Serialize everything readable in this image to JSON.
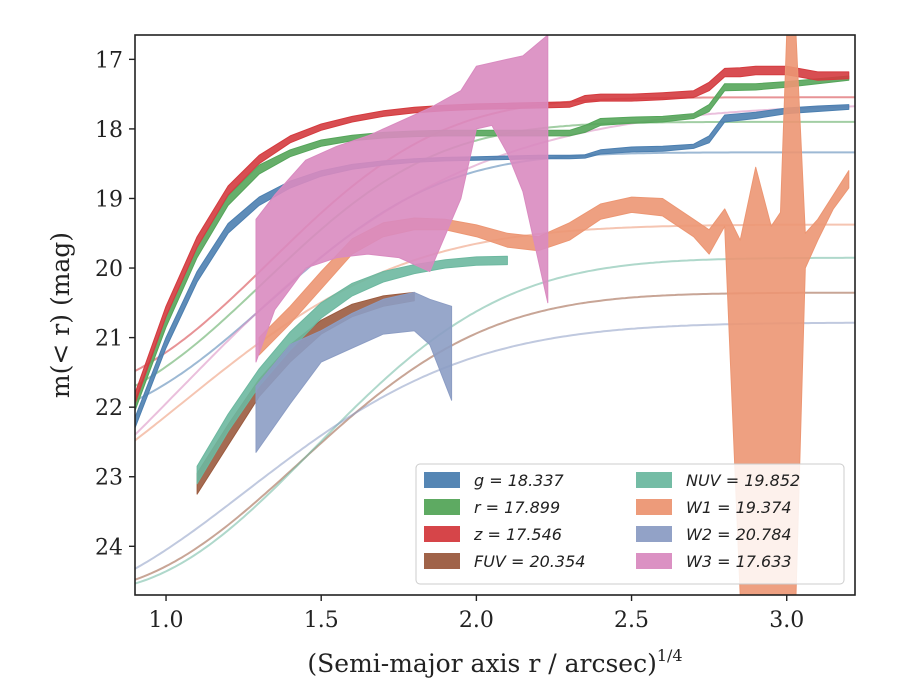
{
  "chart_data": {
    "type": "line",
    "xlabel": "(Semi-major axis r / arcsec)",
    "xlabel_sup": "1/4",
    "ylabel": "m(< r) (mag)",
    "xlim": [
      0.9,
      3.22
    ],
    "ylim": [
      24.7,
      16.65
    ],
    "y_inverted": true,
    "x_ticks": [
      1.0,
      1.5,
      2.0,
      2.5,
      3.0
    ],
    "x_tick_labels": [
      "1.0",
      "1.5",
      "2.0",
      "2.5",
      "3.0"
    ],
    "y_ticks": [
      17,
      18,
      19,
      20,
      21,
      22,
      23,
      24
    ],
    "y_tick_labels": [
      "17",
      "18",
      "19",
      "20",
      "21",
      "22",
      "23",
      "24"
    ],
    "grid": false,
    "legend_position": "lower-right",
    "series": [
      {
        "name": "g",
        "legend": "g = 18.337",
        "color": "#4c7fb0",
        "model_asymptote": 18.337,
        "model_scale": 3.9,
        "model_offset": 0.52,
        "model_power": 2.5,
        "x": [
          0.9,
          1.0,
          1.1,
          1.2,
          1.3,
          1.4,
          1.5,
          1.6,
          1.7,
          1.8,
          1.9,
          2.0,
          2.1,
          2.2,
          2.3,
          2.35,
          2.4,
          2.5,
          2.6,
          2.7,
          2.75,
          2.8,
          2.9,
          3.0,
          3.1,
          3.2
        ],
        "y_lower": [
          22.3,
          21.15,
          20.2,
          19.5,
          19.1,
          18.85,
          18.68,
          18.58,
          18.52,
          18.48,
          18.46,
          18.45,
          18.44,
          18.43,
          18.43,
          18.42,
          18.36,
          18.33,
          18.32,
          18.28,
          18.2,
          17.9,
          17.85,
          17.78,
          17.75,
          17.72
        ],
        "y_upper": [
          22.15,
          21.0,
          20.05,
          19.36,
          18.98,
          18.75,
          18.6,
          18.51,
          18.46,
          18.43,
          18.41,
          18.4,
          18.39,
          18.38,
          18.38,
          18.37,
          18.3,
          18.26,
          18.25,
          18.22,
          18.1,
          17.8,
          17.76,
          17.7,
          17.67,
          17.65
        ]
      },
      {
        "name": "r",
        "legend": "r = 17.899",
        "color": "#55a55a",
        "model_asymptote": 17.899,
        "model_scale": 4.2,
        "model_offset": 0.5,
        "model_power": 2.5,
        "x": [
          0.9,
          1.0,
          1.1,
          1.2,
          1.3,
          1.4,
          1.5,
          1.6,
          1.7,
          1.8,
          1.9,
          2.0,
          2.1,
          2.2,
          2.3,
          2.35,
          2.4,
          2.5,
          2.6,
          2.7,
          2.75,
          2.8,
          2.9,
          3.0,
          3.1,
          3.2
        ],
        "y_lower": [
          22.05,
          20.85,
          19.85,
          19.1,
          18.65,
          18.4,
          18.25,
          18.17,
          18.13,
          18.11,
          18.1,
          18.1,
          18.1,
          18.1,
          18.1,
          18.05,
          17.95,
          17.92,
          17.9,
          17.85,
          17.75,
          17.45,
          17.44,
          17.4,
          17.35,
          17.3
        ],
        "y_upper": [
          21.9,
          20.7,
          19.7,
          18.96,
          18.52,
          18.3,
          18.16,
          18.09,
          18.05,
          18.03,
          18.02,
          18.02,
          18.02,
          18.02,
          18.02,
          17.95,
          17.85,
          17.83,
          17.82,
          17.78,
          17.65,
          17.35,
          17.35,
          17.32,
          17.28,
          17.24
        ]
      },
      {
        "name": "z",
        "legend": "z = 17.546",
        "color": "#d43b3f",
        "model_asymptote": 17.546,
        "model_scale": 4.3,
        "model_offset": 0.52,
        "model_power": 2.5,
        "x": [
          0.9,
          1.0,
          1.1,
          1.2,
          1.3,
          1.4,
          1.5,
          1.6,
          1.7,
          1.8,
          1.9,
          2.0,
          2.1,
          2.2,
          2.3,
          2.35,
          2.4,
          2.5,
          2.6,
          2.7,
          2.75,
          2.8,
          2.85,
          2.9,
          3.0,
          3.1,
          3.2
        ],
        "y_lower": [
          21.95,
          20.7,
          19.7,
          18.95,
          18.5,
          18.2,
          18.02,
          17.9,
          17.82,
          17.77,
          17.74,
          17.72,
          17.71,
          17.7,
          17.69,
          17.62,
          17.6,
          17.6,
          17.58,
          17.55,
          17.45,
          17.25,
          17.25,
          17.22,
          17.22,
          17.3,
          17.28
        ],
        "y_upper": [
          21.8,
          20.55,
          19.55,
          18.82,
          18.38,
          18.1,
          17.93,
          17.82,
          17.74,
          17.69,
          17.66,
          17.64,
          17.63,
          17.62,
          17.61,
          17.52,
          17.5,
          17.5,
          17.48,
          17.45,
          17.33,
          17.13,
          17.12,
          17.1,
          17.1,
          17.18,
          17.18
        ]
      },
      {
        "name": "FUV",
        "legend": "FUV = 20.354",
        "color": "#9b5b3f",
        "model_asymptote": 20.354,
        "model_scale": 4.3,
        "model_offset": 0.65,
        "model_power": 2.3,
        "x": [
          1.1,
          1.2,
          1.3,
          1.4,
          1.5,
          1.6,
          1.7,
          1.8
        ],
        "y_lower": [
          23.25,
          22.55,
          21.85,
          21.35,
          20.95,
          20.7,
          20.55,
          20.47
        ],
        "y_upper": [
          22.95,
          22.25,
          21.6,
          21.1,
          20.75,
          20.52,
          20.4,
          20.35
        ]
      },
      {
        "name": "NUV",
        "legend": "NUV = 19.852",
        "color": "#6db8a0",
        "model_asymptote": 19.852,
        "model_scale": 4.8,
        "model_offset": 0.7,
        "model_power": 2.3,
        "x": [
          1.1,
          1.2,
          1.3,
          1.4,
          1.5,
          1.6,
          1.7,
          1.8,
          1.9,
          2.0,
          2.1
        ],
        "y_lower": [
          23.1,
          22.35,
          21.7,
          21.18,
          20.72,
          20.4,
          20.2,
          20.08,
          20.0,
          19.96,
          19.95
        ],
        "y_upper": [
          22.85,
          22.1,
          21.45,
          20.92,
          20.5,
          20.22,
          20.05,
          19.95,
          19.88,
          19.84,
          19.83
        ]
      },
      {
        "name": "W1",
        "legend": "W1 = 19.374",
        "color": "#ec9673",
        "model_asymptote": 19.374,
        "model_scale": 4.2,
        "model_offset": 0.35,
        "model_power": 2.0,
        "x": [
          1.3,
          1.4,
          1.5,
          1.6,
          1.7,
          1.8,
          1.9,
          2.0,
          2.1,
          2.2,
          2.3,
          2.4,
          2.5,
          2.6,
          2.7,
          2.75,
          2.8,
          2.85,
          2.9,
          2.95,
          2.98,
          3.0,
          3.03,
          3.06,
          3.1,
          3.15,
          3.2
        ],
        "y_lower": [
          21.25,
          20.8,
          20.3,
          19.8,
          19.55,
          19.45,
          19.45,
          19.55,
          19.7,
          19.75,
          19.6,
          19.3,
          19.2,
          19.25,
          19.55,
          19.8,
          19.4,
          24.7,
          24.7,
          24.7,
          24.7,
          24.7,
          24.7,
          20.0,
          19.6,
          19.15,
          18.85
        ],
        "y_upper": [
          21.0,
          20.55,
          20.05,
          19.58,
          19.35,
          19.28,
          19.3,
          19.38,
          19.5,
          19.55,
          19.35,
          19.08,
          18.98,
          19.0,
          19.3,
          19.45,
          19.15,
          19.6,
          18.55,
          19.4,
          19.2,
          16.65,
          16.65,
          19.5,
          19.3,
          18.95,
          18.6
        ]
      },
      {
        "name": "W2",
        "legend": "W2 = 20.784",
        "color": "#8c9dc4",
        "model_asymptote": 20.784,
        "model_scale": 4.0,
        "model_offset": 0.55,
        "model_power": 2.0,
        "x": [
          1.29,
          1.4,
          1.5,
          1.6,
          1.7,
          1.8,
          1.85,
          1.92
        ],
        "y_lower": [
          22.65,
          21.95,
          21.35,
          21.15,
          20.95,
          20.9,
          21.1,
          21.9
        ],
        "y_upper": [
          21.7,
          21.1,
          20.9,
          20.65,
          20.45,
          20.35,
          20.45,
          20.55
        ]
      },
      {
        "name": "W3",
        "legend": "W3 = 17.633",
        "color": "#d98bc0",
        "model_asymptote": 17.633,
        "model_scale": 6.0,
        "model_offset": 0.5,
        "model_power": 1.6,
        "x": [
          1.29,
          1.35,
          1.45,
          1.55,
          1.65,
          1.75,
          1.85,
          1.95,
          2.0,
          2.05,
          2.1,
          2.15,
          2.23
        ],
        "y_lower": [
          21.35,
          20.6,
          20.0,
          19.85,
          19.8,
          19.85,
          20.05,
          19.0,
          18.0,
          17.95,
          18.35,
          18.9,
          20.5
        ],
        "y_upper": [
          19.3,
          18.95,
          18.45,
          18.25,
          18.1,
          17.9,
          17.7,
          17.45,
          17.1,
          17.05,
          17.0,
          16.95,
          16.65
        ]
      }
    ],
    "legend_columns": [
      [
        "g",
        "r",
        "z",
        "FUV"
      ],
      [
        "NUV",
        "W1",
        "W2",
        "W3"
      ]
    ]
  }
}
